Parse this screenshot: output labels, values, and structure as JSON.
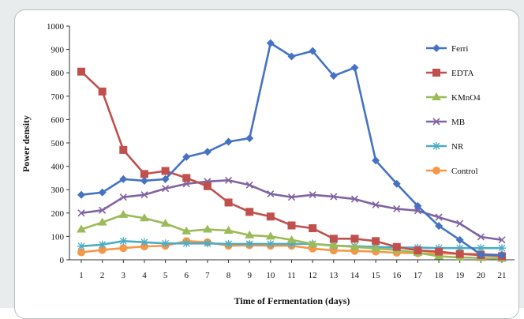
{
  "chart_data": {
    "type": "line",
    "xlabel": "Time of Fermentation (days)",
    "ylabel": "Power density",
    "ylim": [
      0,
      1000
    ],
    "yticks": [
      0,
      100,
      200,
      300,
      400,
      500,
      600,
      700,
      800,
      900,
      1000
    ],
    "categories": [
      "1",
      "2",
      "3",
      "4",
      "5",
      "6",
      "7",
      "8",
      "9",
      "10",
      "11",
      "12",
      "13",
      "14",
      "15",
      "16",
      "17",
      "18",
      "19",
      "20",
      "21"
    ],
    "grid": false,
    "legend_position": "right",
    "series": [
      {
        "name": "Ferri",
        "color": "#4472c4",
        "marker": "diamond",
        "values": [
          278,
          288,
          345,
          338,
          345,
          440,
          462,
          505,
          520,
          927,
          870,
          893,
          787,
          822,
          425,
          325,
          230,
          145,
          85,
          22,
          20
        ]
      },
      {
        "name": "EDTA",
        "color": "#c0504d",
        "marker": "square",
        "values": [
          805,
          720,
          470,
          367,
          380,
          350,
          315,
          245,
          205,
          185,
          147,
          135,
          90,
          90,
          80,
          55,
          40,
          35,
          25,
          20,
          15
        ]
      },
      {
        "name": "KMnO4",
        "color": "#9bbb59",
        "marker": "triangle",
        "values": [
          130,
          160,
          193,
          178,
          155,
          122,
          130,
          125,
          105,
          100,
          85,
          68,
          62,
          55,
          48,
          42,
          30,
          15,
          10,
          8,
          5
        ]
      },
      {
        "name": "MB",
        "color": "#8064a2",
        "marker": "x",
        "values": [
          200,
          212,
          268,
          278,
          305,
          325,
          335,
          340,
          320,
          282,
          268,
          278,
          270,
          260,
          235,
          218,
          210,
          182,
          155,
          98,
          85
        ]
      },
      {
        "name": "NR",
        "color": "#4bacc6",
        "marker": "star",
        "values": [
          58,
          65,
          80,
          75,
          70,
          70,
          70,
          68,
          68,
          68,
          68,
          68,
          60,
          58,
          55,
          52,
          52,
          50,
          50,
          50,
          50
        ]
      },
      {
        "name": "Control",
        "color": "#f79646",
        "marker": "circle",
        "values": [
          32,
          42,
          50,
          57,
          60,
          80,
          75,
          60,
          62,
          60,
          60,
          48,
          40,
          38,
          35,
          30,
          28,
          27,
          25,
          25,
          20
        ]
      }
    ]
  }
}
